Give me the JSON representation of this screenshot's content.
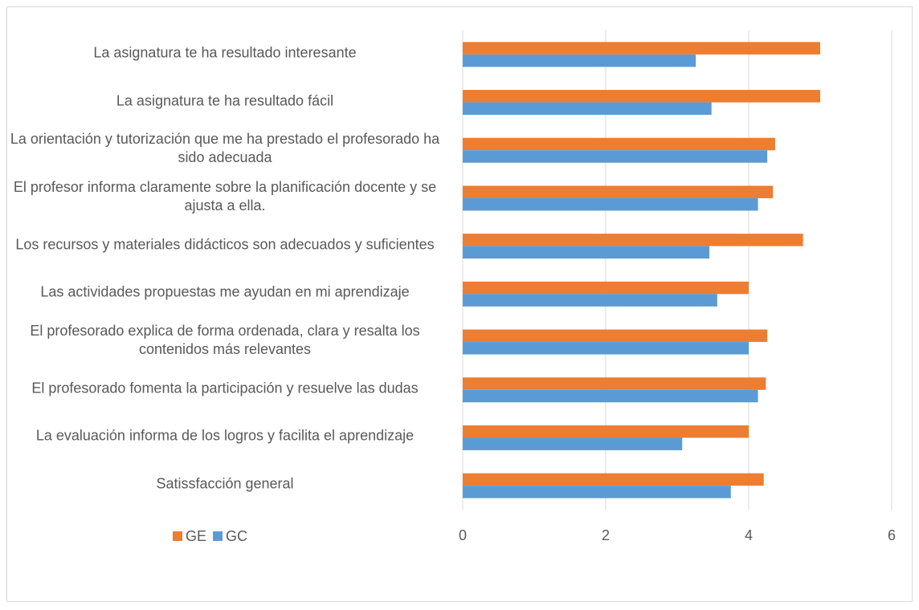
{
  "chart_data": {
    "type": "bar",
    "orientation": "horizontal",
    "categories": [
      "La asignatura te ha resultado interesante",
      "La asignatura te ha resultado fácil",
      "La orientación y tutorización que me ha prestado el profesorado ha sido adecuada",
      "El profesor informa claramente sobre la planificación docente y se ajusta a ella.",
      "Los recursos y materiales didácticos son adecuados y suficientes",
      "Las actividades propuestas me ayudan en mi aprendizaje",
      "El profesorado explica de forma ordenada, clara y resalta los contenidos más relevantes",
      "El profesorado fomenta la participación y resuelve las dudas",
      "La evaluación informa de los logros y facilita el aprendizaje",
      "Satissfacción general"
    ],
    "series": [
      {
        "name": "GE",
        "color": "#ed7d31",
        "values": [
          5,
          5,
          4.37,
          4.34,
          4.76,
          4,
          4.26,
          4.24,
          4,
          4.21
        ]
      },
      {
        "name": "GC",
        "color": "#5b9bd5",
        "values": [
          3.26,
          3.48,
          4.26,
          4.13,
          3.45,
          3.56,
          4,
          4.13,
          3.07,
          3.75
        ]
      }
    ],
    "xlim": [
      0,
      6
    ],
    "xticks": [
      0,
      2,
      4,
      6
    ],
    "grid": true,
    "legend": "bottom-left"
  }
}
